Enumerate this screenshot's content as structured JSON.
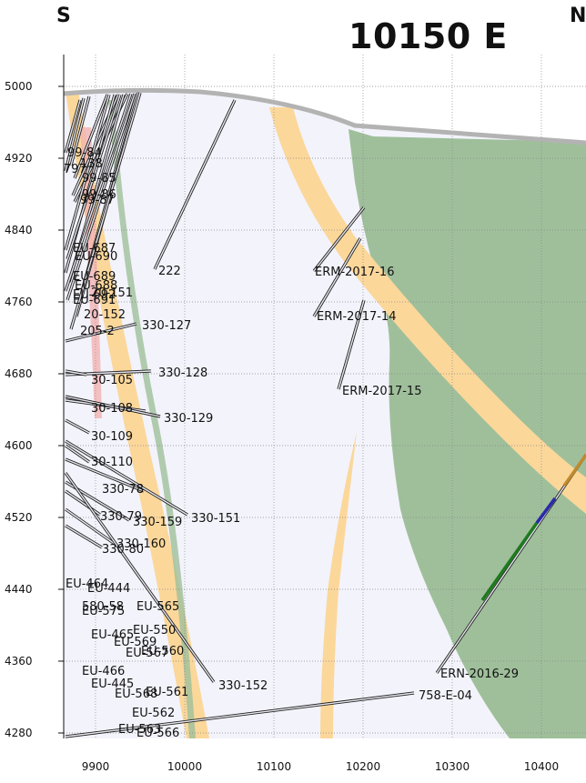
{
  "header": {
    "left_direction": "S",
    "right_direction": "N",
    "section_title": "10150 E"
  },
  "axes": {
    "y_ticks": [
      "5000",
      "4920",
      "4840",
      "4760",
      "4680",
      "4600",
      "4520",
      "4440",
      "4360",
      "4280"
    ],
    "x_ticks": [
      "9900",
      "10000",
      "10100",
      "10200",
      "10300",
      "10400"
    ]
  },
  "colors": {
    "background_zone": "#f3f3fb",
    "green_unit": "#9fbf9b",
    "orange_unit": "#fbd79a",
    "topography": "#b3b3b3",
    "grid": "#888888",
    "hole_casing": "#222222"
  },
  "holes": [
    {
      "label": "99-84"
    },
    {
      "label": "797"
    },
    {
      "label": "138"
    },
    {
      "label": "99-85"
    },
    {
      "label": "99-86"
    },
    {
      "label": "99-87"
    },
    {
      "label": "EU-687"
    },
    {
      "label": "EU-689"
    },
    {
      "label": "EU-690"
    },
    {
      "label": "EU-688"
    },
    {
      "label": "EU-692"
    },
    {
      "label": "EU-691"
    },
    {
      "label": "20-151"
    },
    {
      "label": "20-152"
    },
    {
      "label": "205-2"
    },
    {
      "label": "222"
    },
    {
      "label": "330-127"
    },
    {
      "label": "330-128"
    },
    {
      "label": "30-105"
    },
    {
      "label": "30-108"
    },
    {
      "label": "330-129"
    },
    {
      "label": "30-109"
    },
    {
      "label": "30-110"
    },
    {
      "label": "330-78"
    },
    {
      "label": "330-79"
    },
    {
      "label": "330-159"
    },
    {
      "label": "330-151"
    },
    {
      "label": "330-160"
    },
    {
      "label": "330-80"
    },
    {
      "label": "EU-464"
    },
    {
      "label": "EU-444"
    },
    {
      "label": "580-58"
    },
    {
      "label": "EU-565"
    },
    {
      "label": "EU-575"
    },
    {
      "label": "EU-550"
    },
    {
      "label": "EU-465"
    },
    {
      "label": "EU-569"
    },
    {
      "label": "EU-560"
    },
    {
      "label": "EU-567"
    },
    {
      "label": "EU-466"
    },
    {
      "label": "EU-445"
    },
    {
      "label": "EU-561"
    },
    {
      "label": "EU-568"
    },
    {
      "label": "EU-562"
    },
    {
      "label": "330-152"
    },
    {
      "label": "ERM-2017-16"
    },
    {
      "label": "ERM-2017-14"
    },
    {
      "label": "ERM-2017-15"
    },
    {
      "label": "ERN-2016-29"
    },
    {
      "label": "758-E-04"
    },
    {
      "label": "EU-563"
    },
    {
      "label": "EU-566"
    }
  ]
}
